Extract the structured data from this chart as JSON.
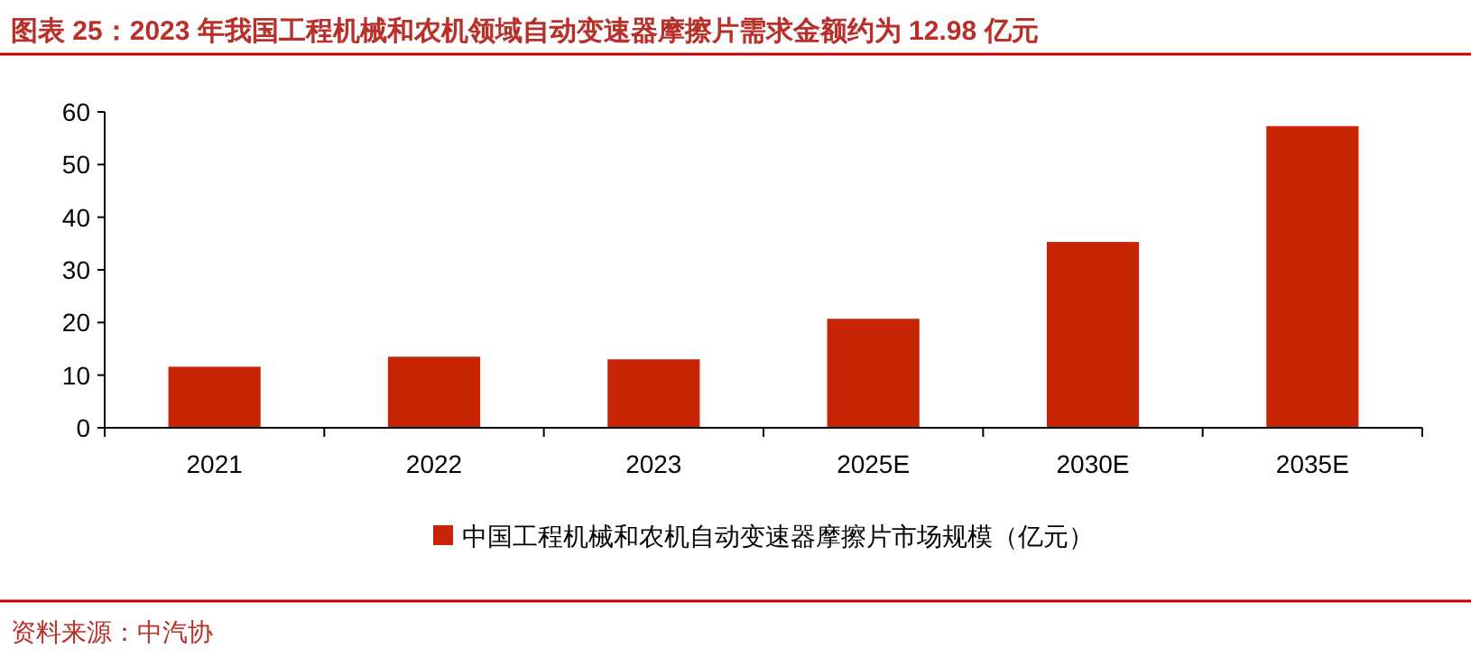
{
  "chart_data": {
    "type": "bar",
    "title": "图表 25：2023 年我国工程机械和农机领域自动变速器摩擦片需求金额约为 12.98 亿元",
    "categories": [
      "2021",
      "2022",
      "2023",
      "2025E",
      "2030E",
      "2035E"
    ],
    "series": [
      {
        "name": "中国工程机械和农机自动变速器摩擦片市场规模（亿元）",
        "color": "#c82506",
        "values": [
          11.6,
          13.5,
          13.0,
          20.7,
          35.3,
          57.3
        ]
      }
    ],
    "ylim": [
      0,
      60
    ],
    "yticks": [
      0,
      10,
      20,
      30,
      40,
      50,
      60
    ],
    "legend": "bottom",
    "grid": false,
    "annotations": [
      "资料来源：中汽协"
    ]
  }
}
